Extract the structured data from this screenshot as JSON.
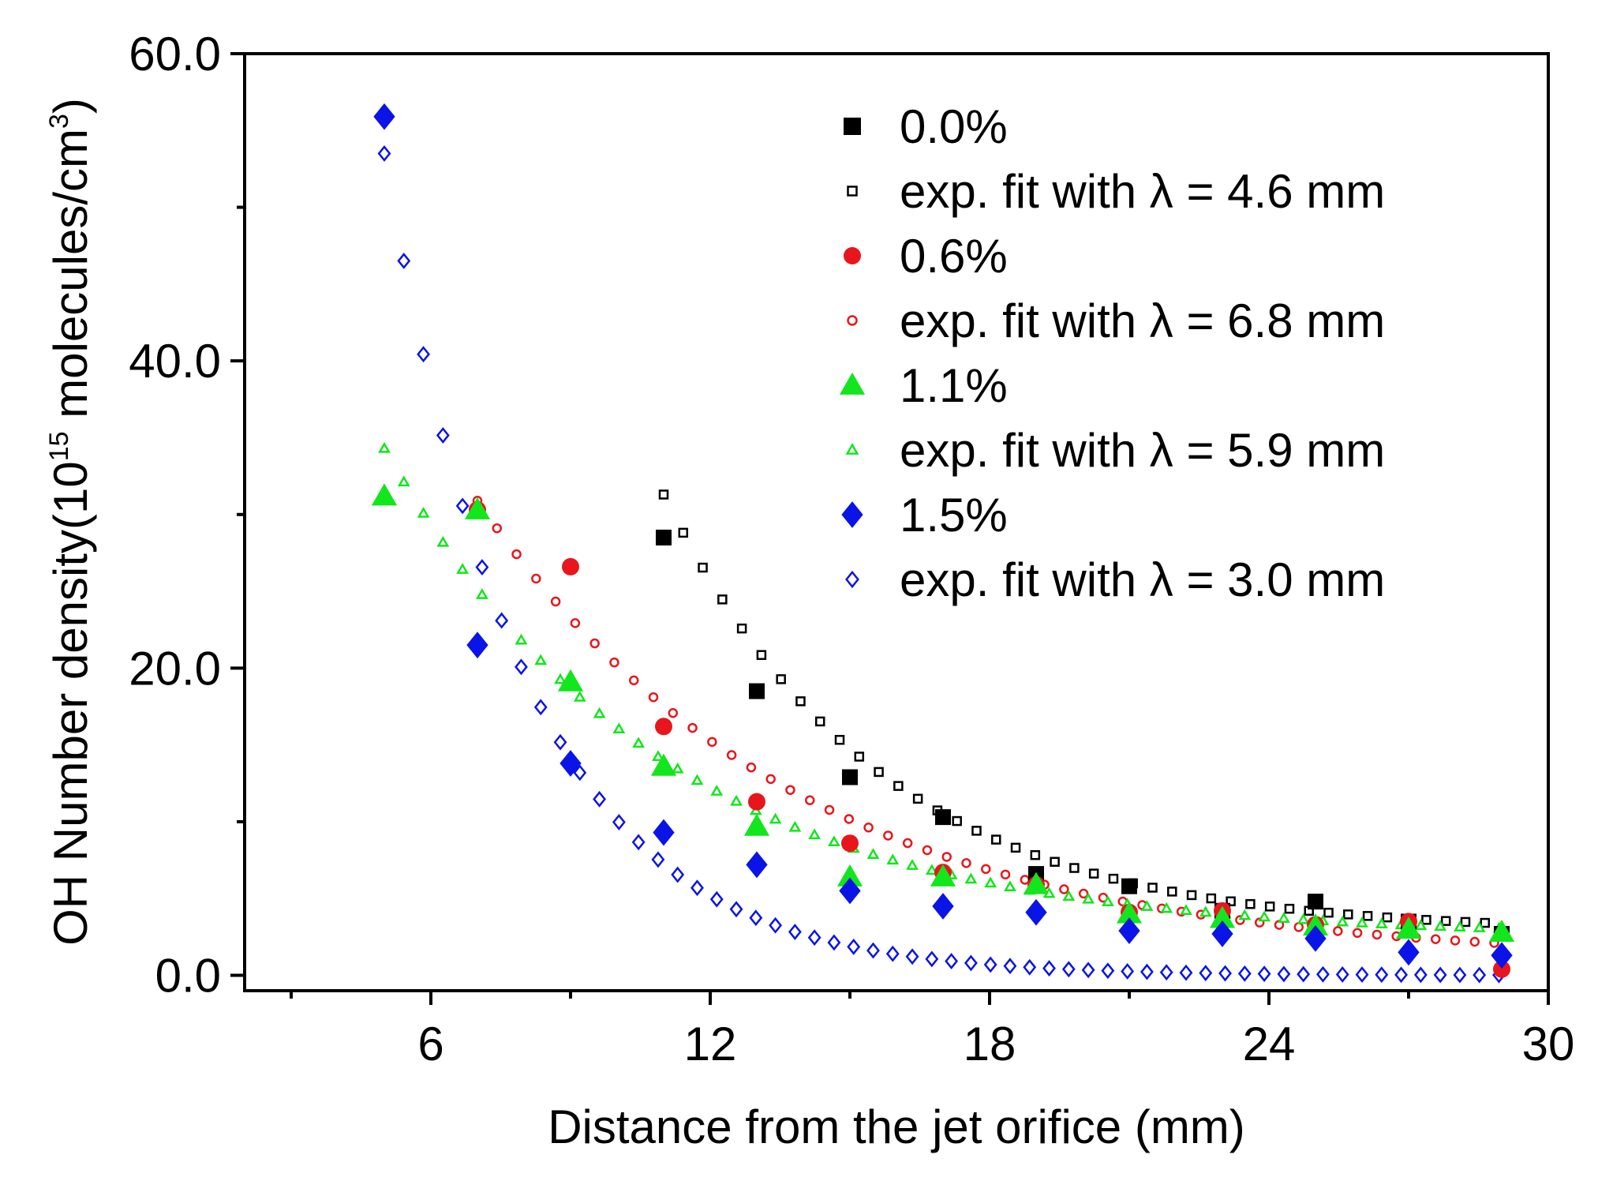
{
  "chart_data": {
    "type": "scatter",
    "xlabel": "Distance from the jet orifice (mm)",
    "ylabel": {
      "prefix": "OH Number density(10",
      "exp": "15",
      "mid": " molecules/cm",
      "exp2": "3",
      "suffix": ")"
    },
    "xlim": [
      2,
      30
    ],
    "ylim": [
      -1,
      60
    ],
    "xticks": [
      6,
      12,
      18,
      24,
      30
    ],
    "xtick_labels": [
      "6",
      "12",
      "18",
      "24",
      "30"
    ],
    "xminor_ticks": [
      3,
      9,
      15,
      21,
      27
    ],
    "yticks": [
      0,
      20,
      40,
      60
    ],
    "ytick_labels": [
      "0.0",
      "20.0",
      "40.0",
      "60.0"
    ],
    "yminor_ticks": [
      10,
      30,
      50
    ],
    "legend_position": "top-right",
    "series": [
      {
        "name": "0.0%",
        "kind": "data",
        "marker": "square",
        "filled": true,
        "color": "#000000",
        "x": [
          11,
          13,
          15,
          17,
          19,
          21,
          23,
          25,
          27,
          29
        ],
        "y": [
          28.5,
          18.5,
          12.9,
          10.3,
          6.6,
          5.8,
          4.2,
          4.8,
          3.5,
          2.7
        ]
      },
      {
        "name": "exp. fit with λ = 4.6 mm",
        "kind": "fit",
        "marker": "square",
        "filled": false,
        "color": "#000000",
        "fit": {
          "a": 28.5,
          "x0": 11,
          "lambda": 4.6,
          "c": 2.8,
          "x_start": 11,
          "x_end": 29,
          "step": 0.42
        }
      },
      {
        "name": "0.6%",
        "kind": "data",
        "marker": "circle",
        "filled": true,
        "color": "#e8161c",
        "x": [
          7,
          9,
          11,
          13,
          15,
          17,
          19,
          21,
          23,
          25,
          27,
          29
        ],
        "y": [
          30.3,
          26.6,
          16.2,
          11.3,
          8.6,
          6.7,
          5.9,
          4.1,
          4.2,
          3.3,
          3.5,
          0.4
        ]
      },
      {
        "name": "exp. fit with λ = 6.8 mm",
        "kind": "fit",
        "marker": "circle",
        "filled": false,
        "color": "#e8161c",
        "fit": {
          "a": 30.0,
          "x0": 7,
          "lambda": 6.8,
          "c": 0.9,
          "x_start": 7,
          "x_end": 29,
          "step": 0.42
        }
      },
      {
        "name": "1.1%",
        "kind": "data",
        "marker": "triangle",
        "filled": true,
        "color": "#12e61c",
        "x": [
          5,
          7,
          9,
          11,
          13,
          15,
          17,
          19,
          21,
          23,
          25,
          27,
          29
        ],
        "y": [
          31.2,
          30.3,
          19.1,
          13.6,
          9.7,
          6.4,
          6.4,
          5.9,
          4.0,
          3.7,
          3.2,
          3.0,
          2.8
        ]
      },
      {
        "name": "exp. fit with λ = 5.9 mm",
        "kind": "fit",
        "marker": "triangle",
        "filled": false,
        "color": "#12e61c",
        "fit": {
          "a": 31.8,
          "x0": 5,
          "lambda": 5.9,
          "c": 2.5,
          "x_start": 5,
          "x_end": 29,
          "step": 0.42
        }
      },
      {
        "name": "1.5%",
        "kind": "data",
        "marker": "diamond",
        "filled": true,
        "color": "#0a14e6",
        "x": [
          5,
          7,
          9,
          11,
          13,
          15,
          17,
          19,
          21,
          23,
          25,
          27,
          29
        ],
        "y": [
          55.9,
          21.5,
          13.8,
          9.3,
          7.2,
          5.5,
          4.5,
          4.1,
          2.9,
          2.7,
          2.4,
          1.5,
          1.3
        ]
      },
      {
        "name": "exp. fit with λ = 3.0 mm",
        "kind": "fit",
        "marker": "diamond",
        "filled": false,
        "color": "#0a14e6",
        "fit": {
          "a": 53.5,
          "x0": 5,
          "lambda": 3.0,
          "c": 0.0,
          "x_start": 5,
          "x_end": 29,
          "step": 0.42
        }
      }
    ]
  }
}
